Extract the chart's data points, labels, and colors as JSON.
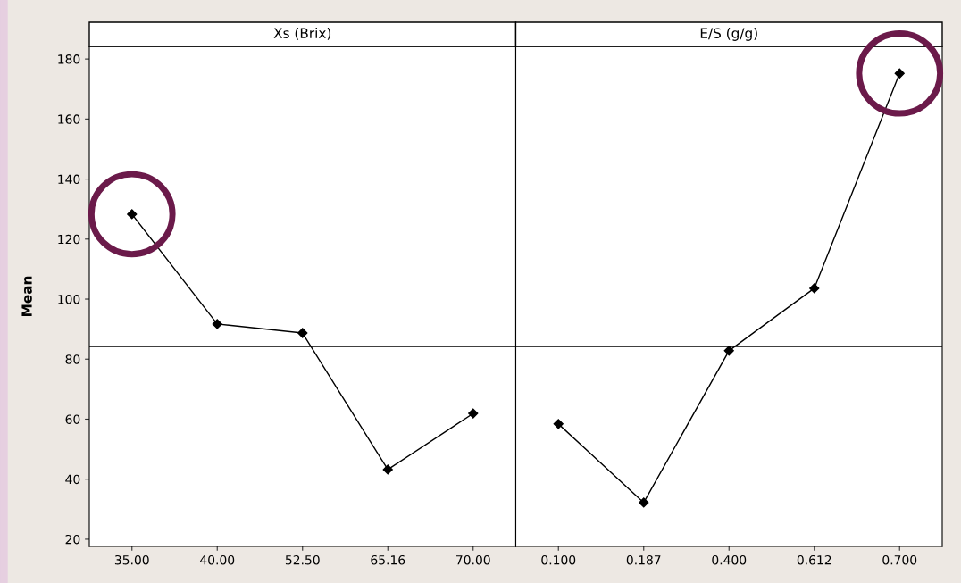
{
  "chart_data": [
    {
      "type": "line",
      "title": "Xs (Brix)",
      "ylabel": "Mean",
      "categories": [
        "35.00",
        "40.00",
        "52.50",
        "65.16",
        "70.00"
      ],
      "values": [
        128.3,
        91.7,
        88.7,
        43.2,
        61.9
      ],
      "color": "#000000",
      "marker": "diamond",
      "line_style": "solid",
      "ylim": [
        17.6,
        184.2
      ],
      "yticks": [
        20,
        40,
        60,
        80,
        100,
        120,
        140,
        160,
        180
      ],
      "ref_lines": [
        {
          "axis": "y",
          "value": 84.2,
          "color": "#000000"
        }
      ],
      "grid": false
    },
    {
      "type": "line",
      "title": "E/S (g/g)",
      "categories": [
        "0.100",
        "0.187",
        "0.400",
        "0.612",
        "0.700"
      ],
      "values": [
        58.4,
        32.2,
        82.8,
        103.6,
        175.2
      ],
      "color": "#000000",
      "marker": "diamond",
      "line_style": "solid",
      "ylim": [
        17.6,
        184.2
      ],
      "yticks": [
        20,
        40,
        60,
        80,
        100,
        120,
        140,
        160,
        180
      ],
      "ref_lines": [
        {
          "axis": "y",
          "value": 84.2,
          "color": "#000000"
        }
      ],
      "grid": false,
      "tick_labels": "x"
    }
  ]
}
